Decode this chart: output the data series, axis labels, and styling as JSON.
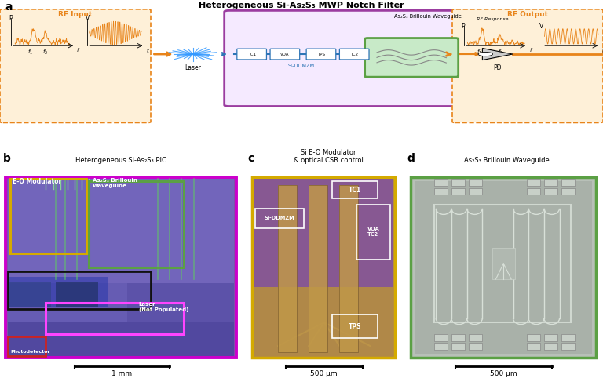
{
  "fig_width": 7.68,
  "fig_height": 4.96,
  "dpi": 100,
  "title_a": "Heterogeneous Si-As₂S₃ MWP Notch Filter",
  "label_a": "a",
  "label_b": "b",
  "label_c": "c",
  "label_d": "d",
  "subtitle_b": "Heterogeneous Si-As₂S₃ PIC",
  "subtitle_c": "Si E-O Modulator\n& optical CSR control",
  "subtitle_d": "As₂S₃ Brillouin Waveguide",
  "rf_input_label": "RF Input",
  "rf_output_label": "RF Output",
  "rf_response_label": "RF Response",
  "laser_label": "Laser",
  "tc1_label": "TC1",
  "voa_label": "VOA",
  "tps_label": "TPS",
  "tc2_label": "TC2",
  "pd_label": "PD",
  "si_ddmzm_label": "Si-DDMZM",
  "as2s3_waveguide_label": "As₂S₃ Brillouin Waveguide",
  "eo_modulator_label": "E-O Modulator",
  "as2s3_brillouin_label": "As₂S₃ Brillouin\nWaveguide",
  "laser_chip_label": "Laser\n(Not Populated)",
  "photodetector_label": "Photodetector",
  "scale_b": "1 mm",
  "scale_cd": "500 μm",
  "color_orange": "#E8841A",
  "color_purple": "#9B3DA0",
  "color_green": "#5BA044",
  "color_blue": "#2E75B6",
  "color_yellow": "#D4AA00",
  "color_magenta": "#CC00CC",
  "color_black": "#222222",
  "color_red": "#CC2222",
  "color_bg_orange": "#FEF0D8",
  "color_bg_purple": "#F5EAFF"
}
